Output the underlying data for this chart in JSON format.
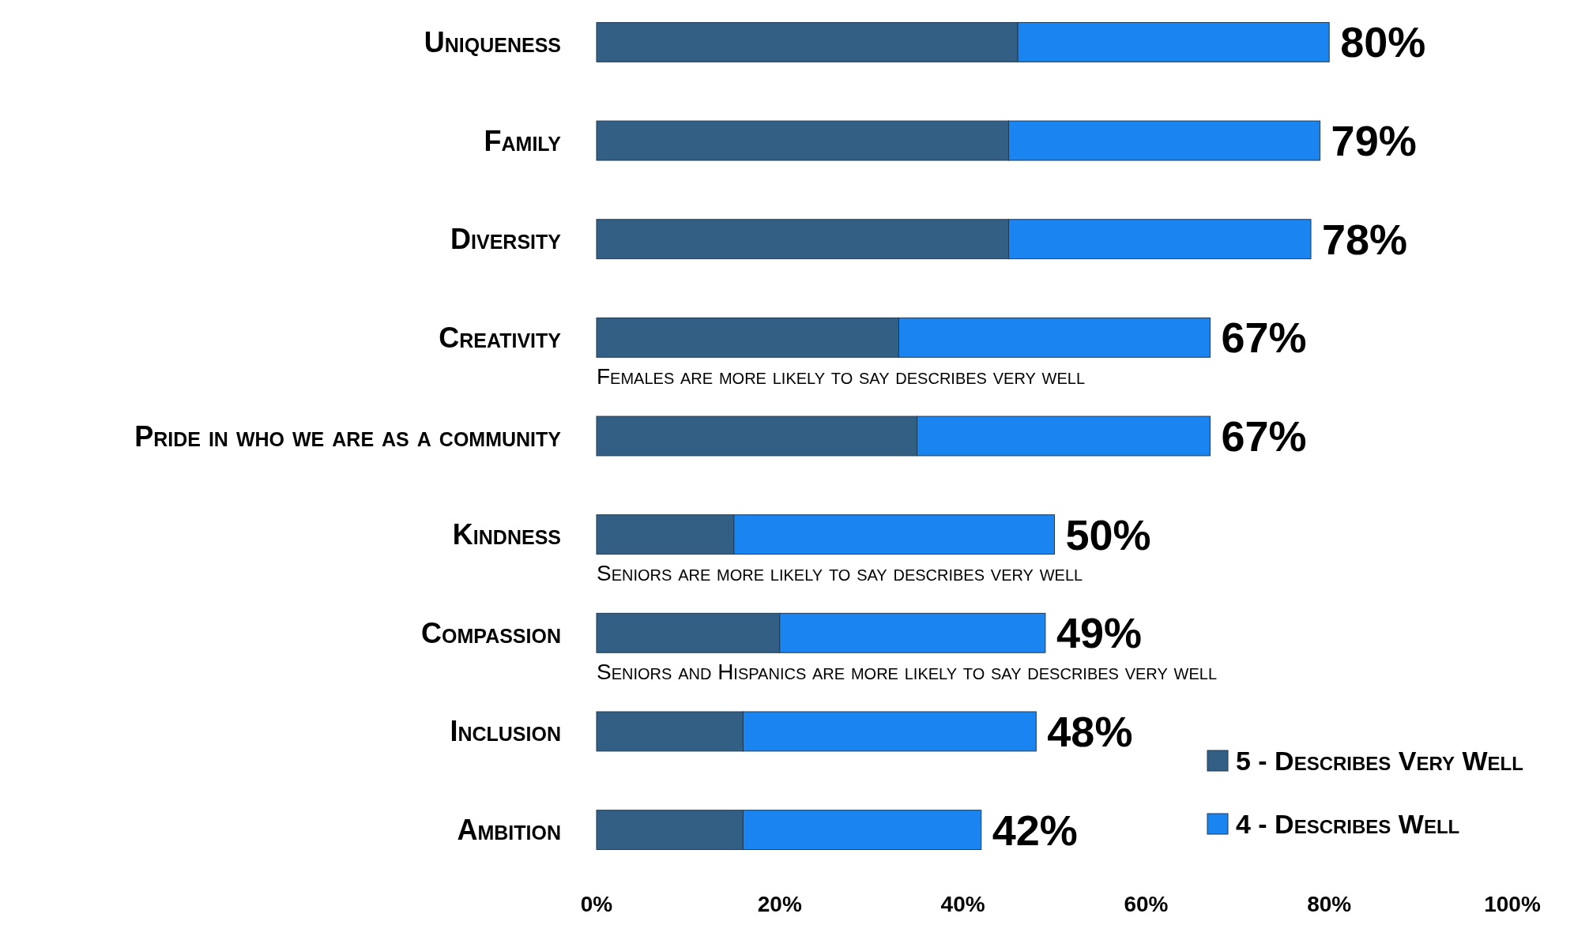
{
  "chart_data": {
    "type": "bar",
    "orientation": "horizontal",
    "stacked": true,
    "categories": [
      "Uniqueness",
      "Family",
      "Diversity",
      "Creativity",
      "Pride in who we are as a community",
      "Kindness",
      "Compassion",
      "Inclusion",
      "Ambition"
    ],
    "series": [
      {
        "name": "5 - Describes Very Well",
        "color": "#335f85",
        "values": [
          46,
          45,
          45,
          33,
          35,
          15,
          20,
          16,
          16
        ]
      },
      {
        "name": "4 - Describes Well",
        "color": "#1a85f0",
        "values": [
          34,
          34,
          33,
          34,
          32,
          35,
          29,
          32,
          26
        ]
      }
    ],
    "totals": [
      "80%",
      "79%",
      "78%",
      "67%",
      "67%",
      "50%",
      "49%",
      "48%",
      "42%"
    ],
    "xlim": [
      0,
      100
    ],
    "xticks": [
      {
        "value": 0,
        "label": "0%"
      },
      {
        "value": 20,
        "label": "20%"
      },
      {
        "value": 40,
        "label": "40%"
      },
      {
        "value": 60,
        "label": "60%"
      },
      {
        "value": 80,
        "label": "80%"
      },
      {
        "value": 100,
        "label": "100%"
      }
    ],
    "annotations": [
      "Females are more likely to say describes very well",
      "Seniors are more likely to say describes very well",
      "Seniors and Hispanics are more likely to say describes very well"
    ],
    "legend": "bottom right",
    "grid": false
  }
}
